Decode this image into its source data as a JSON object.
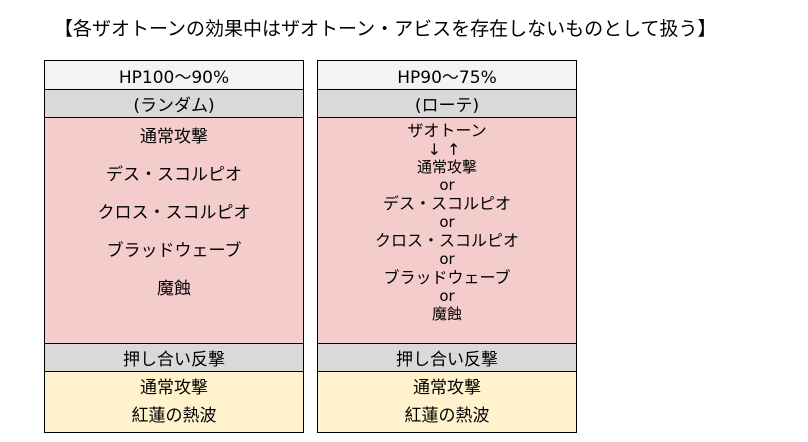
{
  "title": "【各ザオトーンの効果中はザオトーン・アビスを存在しないものとして扱う】",
  "columns": [
    {
      "hp": "HP100～90%",
      "mode": "(ランダム)",
      "main": [
        "通常攻撃",
        "デス・スコルピオ",
        "クロス・スコルピオ",
        "ブラッドウェーブ",
        "魔蝕"
      ],
      "push": "押し合い反撃",
      "counter": [
        "通常攻撃",
        "紅蓮の熱波"
      ]
    },
    {
      "hp": "HP90～75%",
      "mode": "(ローテ)",
      "main": {
        "first": "ザオトーン",
        "arrows": "↓↑",
        "items": [
          "通常攻撃",
          "デス・スコルピオ",
          "クロス・スコルピオ",
          "ブラッドウェーブ",
          "魔蝕"
        ],
        "separator": "or"
      },
      "push": "押し合い反撃",
      "counter": [
        "通常攻撃",
        "紅蓮の熱波"
      ]
    }
  ],
  "colors": {
    "hp_bg": "#f3f3f3",
    "mode_bg": "#d9d9d9",
    "main_bg": "#f4cccc",
    "counter_bg": "#fff2cc"
  }
}
